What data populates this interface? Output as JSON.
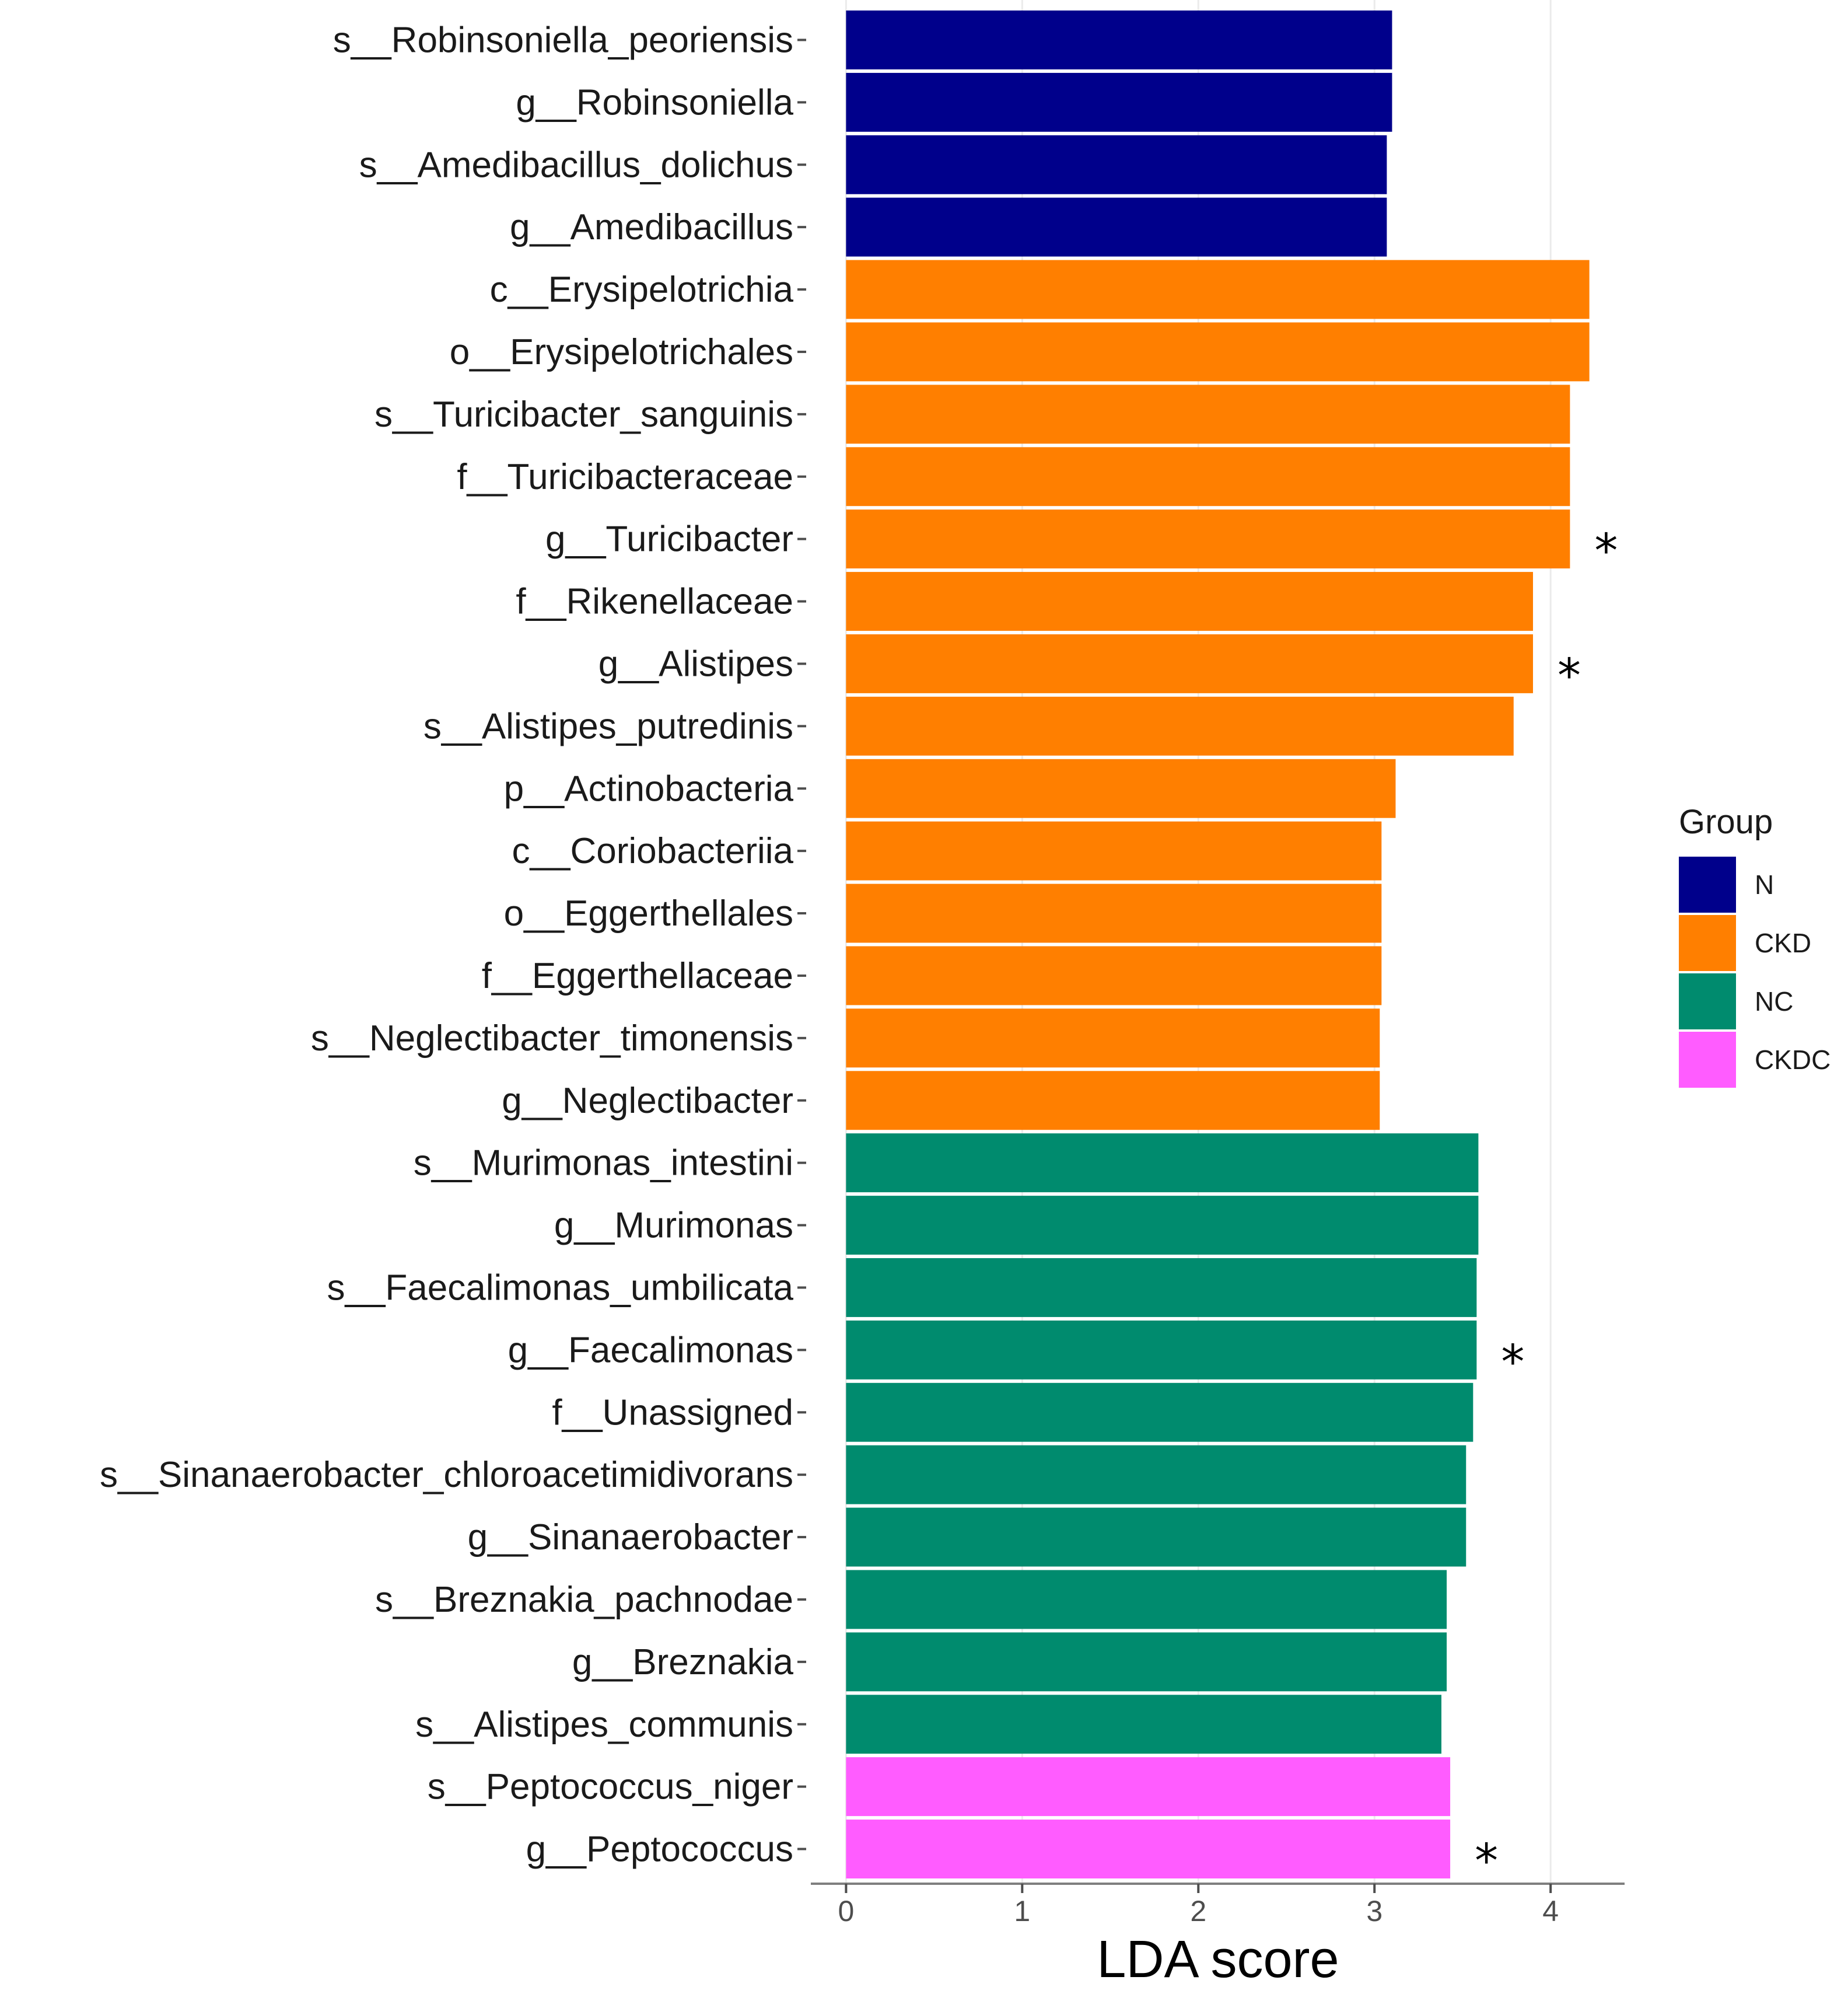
{
  "chart_data": {
    "type": "bar",
    "orientation": "horizontal",
    "title": "",
    "xlabel": "LDA score",
    "ylabel": "",
    "xlim": [
      -0.2,
      4.42
    ],
    "xticks": [
      0,
      1,
      2,
      3,
      4
    ],
    "grid": "vertical major gridlines",
    "legend": {
      "title": "Group",
      "placement": "right",
      "entries": [
        {
          "name": "N",
          "color": "#00008B"
        },
        {
          "name": "CKD",
          "color": "#FF7F00"
        },
        {
          "name": "NC",
          "color": "#008B6E"
        },
        {
          "name": "CKDC",
          "color": "#FF5CFF"
        }
      ]
    },
    "categories": [
      "s__Robinsoniella_peoriensis",
      "g__Robinsoniella",
      "s__Amedibacillus_dolichus",
      "g__Amedibacillus",
      "c__Erysipelotrichia",
      "o__Erysipelotrichales",
      "s__Turicibacter_sanguinis",
      "f__Turicibacteraceae",
      "g__Turicibacter",
      "f__Rikenellaceae",
      "g__Alistipes",
      "s__Alistipes_putredinis",
      "p__Actinobacteria",
      "c__Coriobacteriia",
      "o__Eggerthellales",
      "f__Eggerthellaceae",
      "s__Neglectibacter_timonensis",
      "g__Neglectibacter",
      "s__Murimonas_intestini",
      "g__Murimonas",
      "s__Faecalimonas_umbilicata",
      "g__Faecalimonas",
      "f__Unassigned",
      "s__Sinanaerobacter_chloroacetimidivorans",
      "g__Sinanaerobacter",
      "s__Breznakia_pachnodae",
      "g__Breznakia",
      "s__Alistipes_communis",
      "s__Peptococcus_niger",
      "g__Peptococcus"
    ],
    "values": [
      3.1,
      3.1,
      3.07,
      3.07,
      4.22,
      4.22,
      4.11,
      4.11,
      4.11,
      3.9,
      3.9,
      3.79,
      3.12,
      3.04,
      3.04,
      3.04,
      3.03,
      3.03,
      3.59,
      3.59,
      3.58,
      3.58,
      3.56,
      3.52,
      3.52,
      3.41,
      3.41,
      3.38,
      3.43,
      3.43
    ],
    "groups": [
      "N",
      "N",
      "N",
      "N",
      "CKD",
      "CKD",
      "CKD",
      "CKD",
      "CKD",
      "CKD",
      "CKD",
      "CKD",
      "CKD",
      "CKD",
      "CKD",
      "CKD",
      "CKD",
      "CKD",
      "NC",
      "NC",
      "NC",
      "NC",
      "NC",
      "NC",
      "NC",
      "NC",
      "NC",
      "NC",
      "CKDC",
      "CKDC"
    ],
    "annotations": [
      {
        "category": "g__Turicibacter",
        "text": "*"
      },
      {
        "category": "g__Alistipes",
        "text": "*"
      },
      {
        "category": "g__Faecalimonas",
        "text": "*"
      },
      {
        "category": "g__Peptococcus",
        "text": "*"
      }
    ]
  }
}
